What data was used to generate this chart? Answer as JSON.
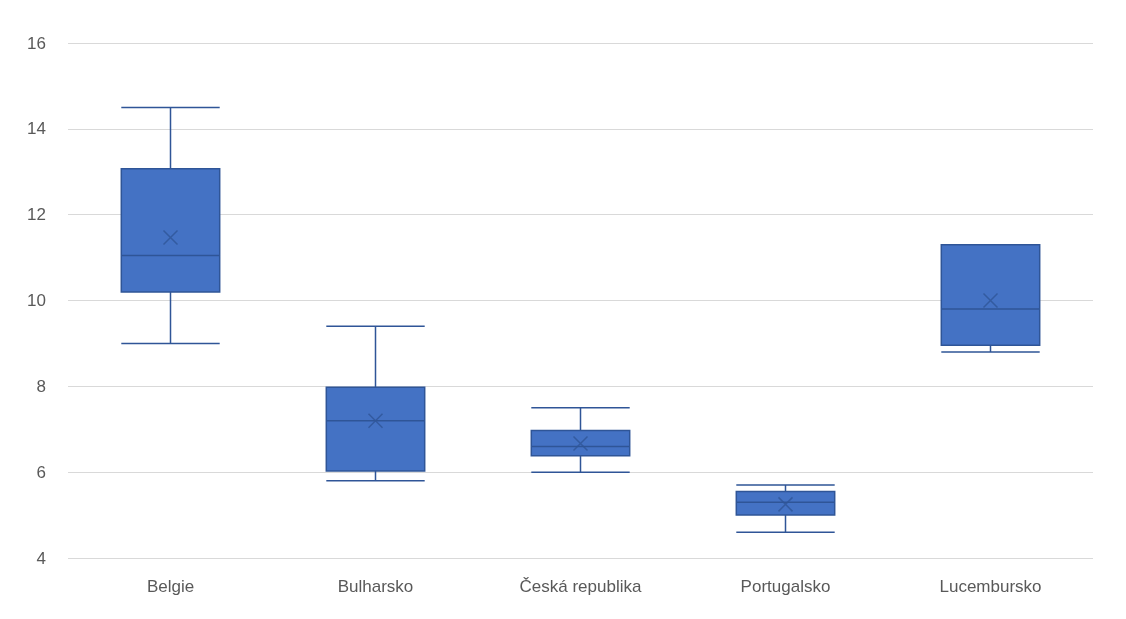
{
  "chart_data": {
    "type": "box",
    "categories": [
      "Belgie",
      "Bulharsko",
      "Česká republika",
      "Portugalsko",
      "Lucembursko"
    ],
    "boxes": [
      {
        "low": 9.0,
        "q1": 10.2,
        "median": 11.05,
        "q3": 13.07,
        "high": 14.5,
        "mean": 11.47
      },
      {
        "low": 5.8,
        "q1": 6.03,
        "median": 7.2,
        "q3": 7.98,
        "high": 9.4,
        "mean": 7.2
      },
      {
        "low": 6.0,
        "q1": 6.38,
        "median": 6.6,
        "q3": 6.97,
        "high": 7.5,
        "mean": 6.67
      },
      {
        "low": 4.6,
        "q1": 5.0,
        "median": 5.3,
        "q3": 5.55,
        "high": 5.7,
        "mean": 5.25
      },
      {
        "low": 8.8,
        "q1": 8.96,
        "median": 9.8,
        "q3": 11.3,
        "high": 11.3,
        "mean": 10.0
      }
    ],
    "color": "#4472c4",
    "ylim": [
      4,
      16
    ],
    "yticks": [
      4,
      6,
      8,
      10,
      12,
      14,
      16
    ],
    "grid": "y",
    "marker": "cross"
  }
}
